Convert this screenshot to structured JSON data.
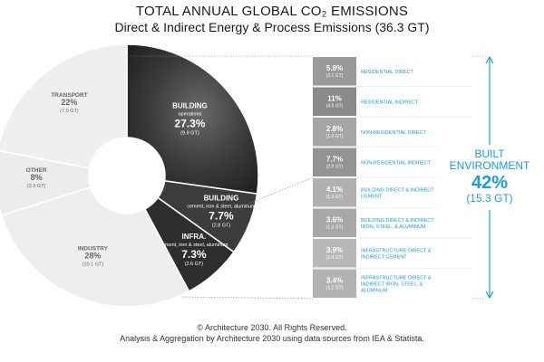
{
  "title": "TOTAL ANNUAL GLOBAL CO₂ EMISSIONS",
  "subtitle": "Direct & Indirect Energy & Process Emissions (36.3 GT)",
  "footer": {
    "line1": "© Architecture 2030. All Rights Reserved.",
    "line2": "Analysis & Aggregation by Architecture 2030 using data sources from IEA & Statista."
  },
  "colors": {
    "building_dark": "#2a2a2a",
    "building_mid": "#4a4a4a",
    "infra": "#3a3a3a",
    "grey_light": "#eeeeee",
    "accent": "#1a9fd9"
  },
  "chart_data": [
    {
      "type": "pie",
      "slices": [
        {
          "label": "BUILDING",
          "sublabel": "operations",
          "percent": "27.3%",
          "value": "(9.9 GT)",
          "share": 27.3
        },
        {
          "label": "BUILDING",
          "sublabel": "cement, iron & steel, aluminum",
          "percent": "7.7%",
          "value": "(2.8 GT)",
          "share": 7.7
        },
        {
          "label": "INFRA.",
          "sublabel": "cement, iron & steel, aluminum",
          "percent": "7.3%",
          "value": "(2.6 GT)",
          "share": 7.3
        },
        {
          "label": "INDUSTRY",
          "percent": "28%",
          "value": "(10.1 GT)",
          "share": 28
        },
        {
          "label": "OTHER",
          "percent": "8%",
          "value": "(2.9 GT)",
          "share": 8
        },
        {
          "label": "TRANSPORT",
          "percent": "22%",
          "value": "(7.9 GT)",
          "share": 22
        }
      ]
    },
    {
      "type": "table",
      "rows": [
        {
          "percent": "5.8%",
          "value": "(2.1 GT)",
          "label": "RESIDENTIAL DIRECT",
          "share": 5.8
        },
        {
          "percent": "11%",
          "value": "(4.0 GT)",
          "label": "RESIDENTIAL INDIRECT",
          "share": 11
        },
        {
          "percent": "2.8%",
          "value": "(1.0 GT)",
          "label": "NON-RESIDENTIAL DIRECT",
          "share": 2.8
        },
        {
          "percent": "7.7%",
          "value": "(2.8 GT)",
          "label": "NON-RESIDENTIAL INDIRECT",
          "share": 7.7
        },
        {
          "percent": "4.1%",
          "value": "(1.5 GT)",
          "label": "BUILDING DIRECT & INDIRECT CEMENT",
          "share": 4.1
        },
        {
          "percent": "3.6%",
          "value": "(1.3 GT)",
          "label": "BUILDING DIRECT & INDIRECT IRON, STEEL, & ALUMINUM",
          "share": 3.6
        },
        {
          "percent": "3.9%",
          "value": "(1.4 GT)",
          "label": "INFRASTRUCTURE DIRECT & INDIRECT CEMENT",
          "share": 3.9
        },
        {
          "percent": "3.4%",
          "value": "(1.2 GT)",
          "label": "INFRASTRUCTURE DIRECT & INDIRECT IRON, STEEL, & ALUMINUM",
          "share": 3.4
        }
      ],
      "summary": {
        "label": "BUILT ENVIRONMENT",
        "percent": "42%",
        "value": "(15.3 GT)"
      }
    }
  ]
}
